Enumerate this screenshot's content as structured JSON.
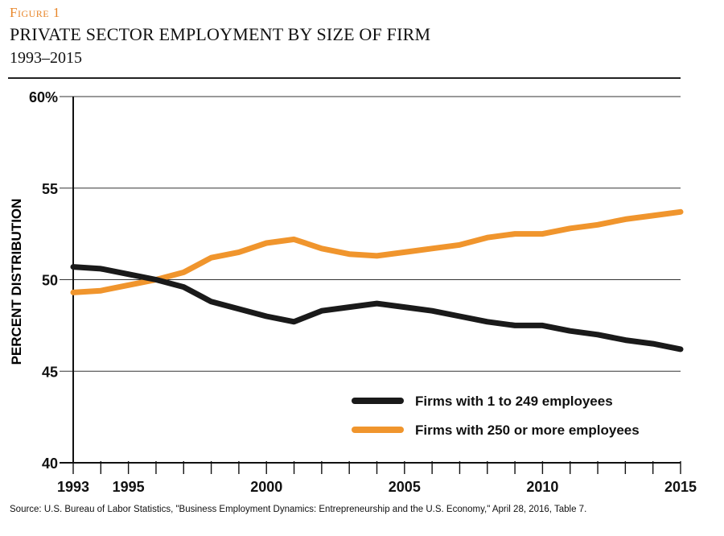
{
  "header": {
    "figure_label": "Figure 1",
    "title": "PRIVATE SECTOR EMPLOYMENT BY SIZE OF FIRM",
    "subtitle": "1993–2015"
  },
  "source": "Source: U.S. Bureau of Labor Statistics, \"Business Employment Dynamics: Entrepreneurship and the U.S. Economy,\" April 28, 2016, Table 7.",
  "colors": {
    "figure_label": "#e8862a",
    "small_firms": "#1a1a1a",
    "large_firms": "#f0952d",
    "axis": "#111111",
    "grid": "#333333"
  },
  "chart_data": {
    "type": "line",
    "ylabel": "PERCENT DISTRIBUTION",
    "xlabel": "",
    "xlim": [
      1993,
      2015
    ],
    "ylim": [
      40,
      60
    ],
    "yticks": [
      {
        "value": 60,
        "label": "60%"
      },
      {
        "value": 55,
        "label": "55"
      },
      {
        "value": 50,
        "label": "50"
      },
      {
        "value": 45,
        "label": "45"
      },
      {
        "value": 40,
        "label": "40"
      }
    ],
    "xticks": [
      {
        "value": 1993,
        "label": "1993"
      },
      {
        "value": 1995,
        "label": "1995"
      },
      {
        "value": 2000,
        "label": "2000"
      },
      {
        "value": 2005,
        "label": "2005"
      },
      {
        "value": 2010,
        "label": "2010"
      },
      {
        "value": 2015,
        "label": "2015"
      }
    ],
    "x": [
      1993,
      1994,
      1995,
      1996,
      1997,
      1998,
      1999,
      2000,
      2001,
      2002,
      2003,
      2004,
      2005,
      2006,
      2007,
      2008,
      2009,
      2010,
      2011,
      2012,
      2013,
      2014,
      2015
    ],
    "series": [
      {
        "name": "Firms with 1 to 249 employees",
        "color_key": "small_firms",
        "values": [
          50.7,
          50.6,
          50.3,
          50.0,
          49.6,
          48.8,
          48.4,
          48.0,
          47.7,
          48.3,
          48.5,
          48.7,
          48.5,
          48.3,
          48.0,
          47.7,
          47.5,
          47.5,
          47.2,
          47.0,
          46.7,
          46.5,
          46.2
        ]
      },
      {
        "name": "Firms with 250 or more employees",
        "color_key": "large_firms",
        "values": [
          49.3,
          49.4,
          49.7,
          50.0,
          50.4,
          51.2,
          51.5,
          52.0,
          52.2,
          51.7,
          51.4,
          51.3,
          51.5,
          51.7,
          51.9,
          52.3,
          52.5,
          52.5,
          52.8,
          53.0,
          53.3,
          53.5,
          53.7
        ]
      }
    ],
    "grid": true,
    "legend_position": "bottom-right"
  }
}
